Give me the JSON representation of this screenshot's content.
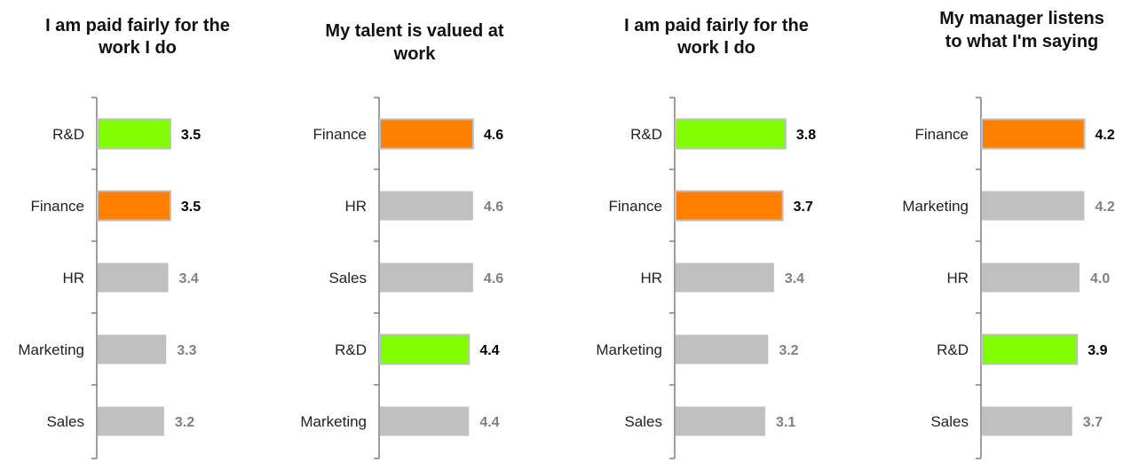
{
  "chart_data": [
    {
      "type": "bar",
      "orientation": "horizontal",
      "title": [
        "I am paid fairly for the",
        "work I do"
      ],
      "categories": [
        "R&D",
        "Finance",
        "HR",
        "Marketing",
        "Sales"
      ],
      "values": [
        3.5,
        3.5,
        3.4,
        3.3,
        3.2
      ],
      "value_labels": [
        "3.5",
        "3.5",
        "3.4",
        "3.3",
        "3.2"
      ],
      "highlight": [
        "lime",
        "orange",
        "none",
        "none",
        "none"
      ]
    },
    {
      "type": "bar",
      "orientation": "horizontal",
      "title": [
        "My talent is valued at",
        "work"
      ],
      "categories": [
        "Finance",
        "HR",
        "Sales",
        "R&D",
        "Marketing"
      ],
      "values": [
        4.6,
        4.6,
        4.6,
        4.4,
        4.4
      ],
      "value_labels": [
        "4.6",
        "4.6",
        "4.6",
        "4.4",
        "4.4"
      ],
      "highlight": [
        "orange",
        "none",
        "none",
        "lime",
        "none"
      ]
    },
    {
      "type": "bar",
      "orientation": "horizontal",
      "title": [
        "I am paid fairly for the",
        "work I do"
      ],
      "categories": [
        "R&D",
        "Finance",
        "HR",
        "Marketing",
        "Sales"
      ],
      "values": [
        3.8,
        3.7,
        3.4,
        3.2,
        3.1
      ],
      "value_labels": [
        "3.8",
        "3.7",
        "3.4",
        "3.2",
        "3.1"
      ],
      "highlight": [
        "lime",
        "orange",
        "none",
        "none",
        "none"
      ]
    },
    {
      "type": "bar",
      "orientation": "horizontal",
      "title": [
        "My manager listens",
        "to what I'm saying"
      ],
      "categories": [
        "Finance",
        "Marketing",
        "HR",
        "R&D",
        "Sales"
      ],
      "values": [
        4.2,
        4.2,
        4.0,
        3.9,
        3.7
      ],
      "value_labels": [
        "4.2",
        "4.2",
        "4.0",
        "3.9",
        "3.7"
      ],
      "highlight": [
        "orange",
        "none",
        "none",
        "lime",
        "none"
      ]
    }
  ],
  "colors": {
    "lime": "#80ff00",
    "orange": "#ff8000",
    "none": "#c0c0c0",
    "highlight_label": "#000000",
    "muted_label": "#808080",
    "axis": "#7f7f7f"
  }
}
